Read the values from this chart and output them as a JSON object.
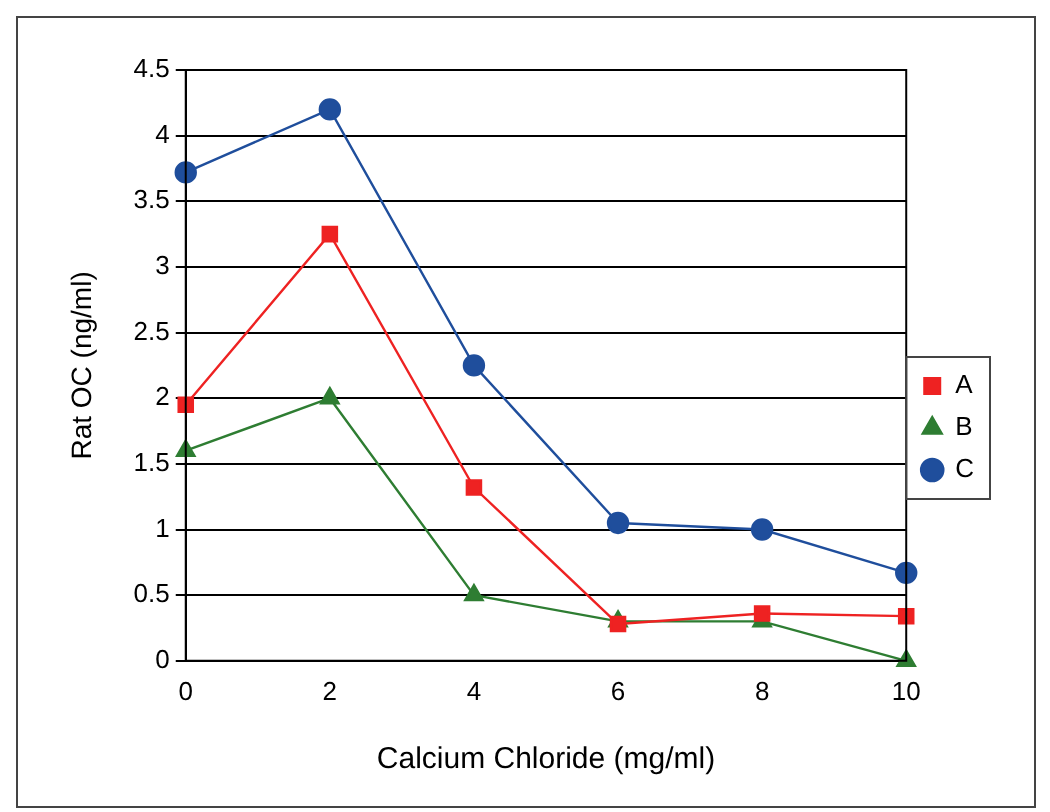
{
  "chart_data": {
    "type": "line",
    "xlabel": "Calcium Chloride (mg/ml)",
    "ylabel": "Rat OC (ng/ml)",
    "x": [
      0,
      2,
      4,
      6,
      8,
      10
    ],
    "series": [
      {
        "name": "A",
        "color": "#ee2222",
        "marker": "square",
        "values": [
          1.95,
          3.25,
          1.32,
          0.28,
          0.36,
          0.34
        ]
      },
      {
        "name": "B",
        "color": "#2e7d32",
        "marker": "triangle",
        "values": [
          1.6,
          2.0,
          0.5,
          0.3,
          0.3,
          0.0
        ]
      },
      {
        "name": "C",
        "color": "#1f4e9c",
        "marker": "circle",
        "values": [
          3.72,
          4.2,
          2.25,
          1.05,
          1.0,
          0.67
        ]
      }
    ],
    "xlim": [
      0,
      10
    ],
    "xticks": [
      0,
      2,
      4,
      6,
      8,
      10
    ],
    "ylim": [
      0,
      4.5
    ],
    "yticks": [
      0,
      0.5,
      1,
      1.5,
      2,
      2.5,
      3,
      3.5,
      4,
      4.5
    ],
    "grid": "y",
    "legend": "right",
    "line_style": "solid"
  }
}
